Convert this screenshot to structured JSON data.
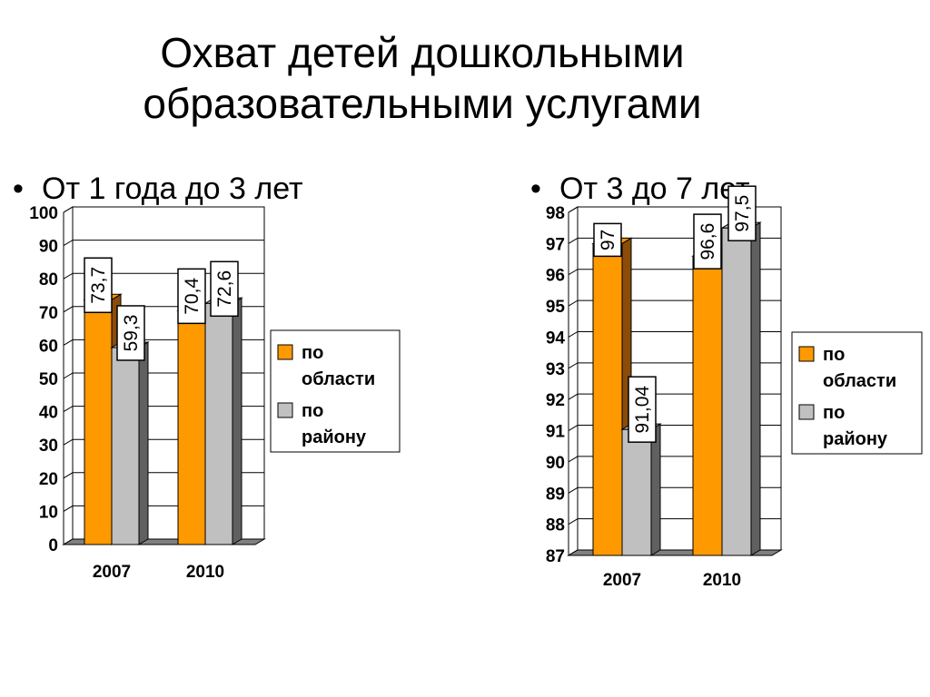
{
  "title": {
    "line1": "Охват детей дошкольными",
    "line2": "образовательными услугами"
  },
  "bullets": {
    "left": "От 1 года до 3 лет",
    "right": "От 3 до 7 лет"
  },
  "colors": {
    "series1": "#FF9900",
    "series2": "#C0C0C0",
    "series1_side": "#8B4C0A",
    "series2_side": "#606060"
  },
  "chart_data": [
    {
      "type": "bar",
      "title": "",
      "categories": [
        "2007",
        "2010"
      ],
      "series": [
        {
          "name": "по области",
          "values": [
            73.7,
            70.4
          ],
          "labels": [
            "73,7",
            "70,4"
          ]
        },
        {
          "name": "по району",
          "values": [
            59.3,
            72.6
          ],
          "labels": [
            "59,3",
            "72,6"
          ]
        }
      ],
      "ylim": [
        0,
        100
      ],
      "yticks": [
        "0",
        "10",
        "20",
        "30",
        "40",
        "50",
        "60",
        "70",
        "80",
        "90",
        "100"
      ],
      "grid": true,
      "legend": "right"
    },
    {
      "type": "bar",
      "title": "",
      "categories": [
        "2007",
        "2010"
      ],
      "series": [
        {
          "name": "по области",
          "values": [
            97,
            96.6
          ],
          "labels": [
            "97",
            "96,6"
          ]
        },
        {
          "name": "по району",
          "values": [
            91.04,
            97.5
          ],
          "labels": [
            "91,04",
            "97,5"
          ]
        }
      ],
      "ylim": [
        87,
        98
      ],
      "yticks": [
        "87",
        "88",
        "89",
        "90",
        "91",
        "92",
        "93",
        "94",
        "95",
        "96",
        "97",
        "98"
      ],
      "grid": true,
      "legend": "right"
    }
  ]
}
